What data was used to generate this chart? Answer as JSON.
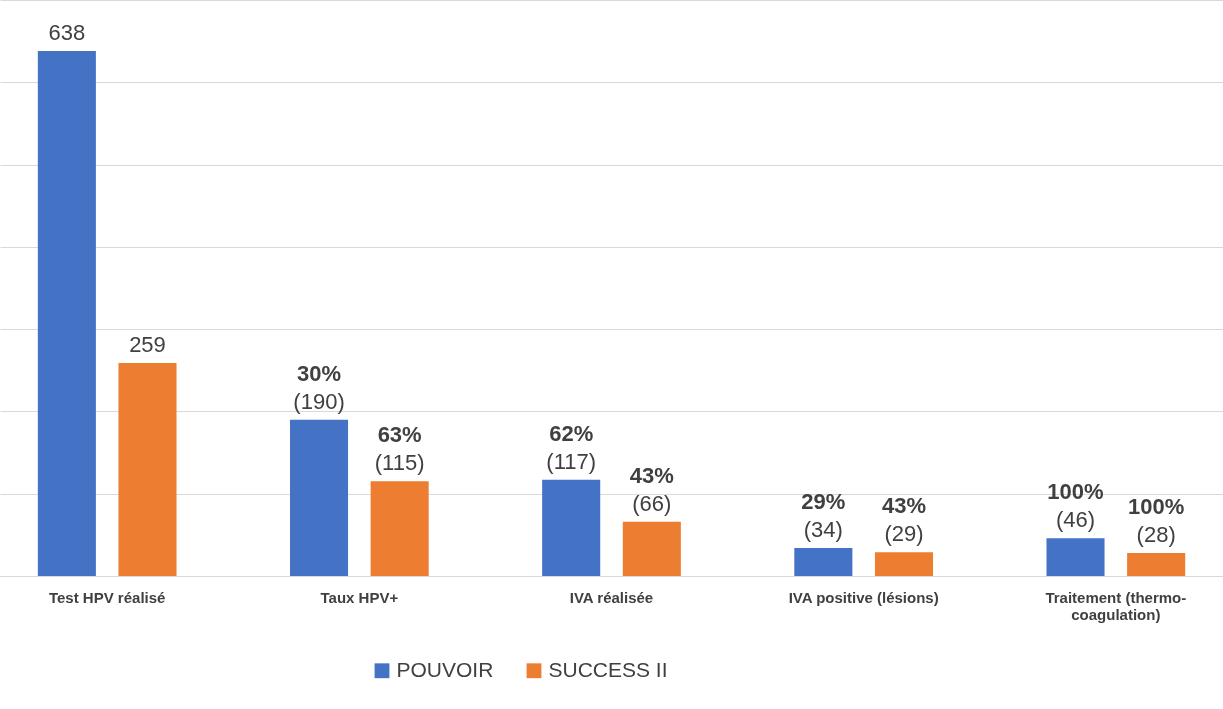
{
  "chart_data": {
    "type": "bar",
    "categories": [
      "Test HPV réalisé",
      "Taux HPV+",
      "IVA réalisée",
      "IVA positive (lésions)",
      "Traitement (thermo-coagulation)"
    ],
    "series": [
      {
        "name": "POUVOIR",
        "color": "#4472c4",
        "values": [
          638,
          190,
          117,
          34,
          46
        ],
        "value_labels": [
          "638",
          "30%\n(190)",
          "62%\n(117)",
          "29%\n(34)",
          "100%\n(46)"
        ]
      },
      {
        "name": "SUCCESS II",
        "color": "#ed7d31",
        "values": [
          259,
          115,
          66,
          29,
          28
        ],
        "value_labels": [
          "259",
          "63%\n(115)",
          "43%\n(66)",
          "43%\n(29)",
          "100%\n(28)"
        ]
      }
    ],
    "ylim": [
      0,
      700
    ],
    "yticks": [
      {
        "value": 0,
        "label": null
      },
      {
        "value": 100,
        "label": null
      },
      {
        "value": 200,
        "label": null
      },
      {
        "value": 300,
        "label": null
      },
      {
        "value": 400,
        "label": null
      },
      {
        "value": 500,
        "label": null
      },
      {
        "value": 600,
        "label": null
      },
      {
        "value": 700,
        "label": null
      }
    ],
    "tick_labels": "x",
    "grid": "y",
    "legend": "bottom"
  }
}
